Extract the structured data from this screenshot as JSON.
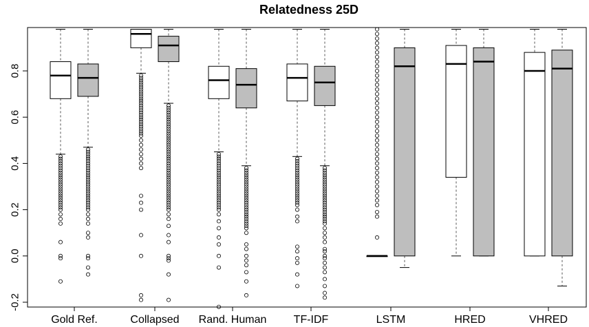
{
  "chart_data": {
    "type": "box",
    "title": "Relatedness 25D",
    "xlabel": "",
    "ylabel": "",
    "ylim": [
      -0.2,
      0.98
    ],
    "yticks": [
      -0.2,
      0.0,
      0.2,
      0.4,
      0.6,
      0.8
    ],
    "categories": [
      "Gold Ref.",
      "Collapsed",
      "Rand. Human",
      "TF-IDF",
      "LSTM",
      "HRED",
      "VHRED"
    ],
    "colors": {
      "first_box": "#ffffff",
      "second_box": "#bebebe",
      "axis": "#000000",
      "whisker": "#555555"
    },
    "series": [
      {
        "boxes": [
          {
            "min": 0.44,
            "q1": 0.68,
            "median": 0.78,
            "q3": 0.84,
            "max": 0.98,
            "outliers_low": [
              0.43,
              0.42,
              0.41,
              0.4,
              0.39,
              0.38,
              0.37,
              0.36,
              0.35,
              0.34,
              0.33,
              0.32,
              0.31,
              0.3,
              0.29,
              0.28,
              0.27,
              0.26,
              0.25,
              0.24,
              0.23,
              0.22,
              0.21,
              0.2,
              0.18,
              0.16,
              0.14,
              0.06,
              0.0,
              -0.01,
              -0.11
            ]
          },
          {
            "min": 0.79,
            "q1": 0.9,
            "median": 0.96,
            "q3": 0.98,
            "max": 0.98,
            "outliers_low": [
              0.78,
              0.77,
              0.76,
              0.75,
              0.74,
              0.73,
              0.72,
              0.71,
              0.7,
              0.69,
              0.68,
              0.67,
              0.66,
              0.65,
              0.64,
              0.63,
              0.62,
              0.61,
              0.6,
              0.59,
              0.58,
              0.57,
              0.56,
              0.55,
              0.54,
              0.53,
              0.52,
              0.5,
              0.48,
              0.46,
              0.44,
              0.42,
              0.4,
              0.38,
              0.26,
              0.23,
              0.2,
              0.09,
              0.0,
              -0.17,
              -0.19
            ]
          },
          {
            "min": 0.45,
            "q1": 0.68,
            "median": 0.76,
            "q3": 0.82,
            "max": 0.98,
            "outliers_low": [
              0.44,
              0.43,
              0.42,
              0.41,
              0.4,
              0.39,
              0.38,
              0.37,
              0.36,
              0.35,
              0.34,
              0.33,
              0.32,
              0.31,
              0.3,
              0.29,
              0.28,
              0.27,
              0.26,
              0.25,
              0.24,
              0.23,
              0.22,
              0.21,
              0.2,
              0.18,
              0.15,
              0.12,
              0.08,
              0.05,
              0.0,
              -0.05,
              -0.22
            ]
          },
          {
            "min": 0.43,
            "q1": 0.67,
            "median": 0.77,
            "q3": 0.83,
            "max": 0.98,
            "outliers_low": [
              0.42,
              0.41,
              0.4,
              0.39,
              0.38,
              0.37,
              0.36,
              0.35,
              0.34,
              0.33,
              0.32,
              0.31,
              0.3,
              0.29,
              0.28,
              0.27,
              0.26,
              0.25,
              0.24,
              0.23,
              0.22,
              0.2,
              0.17,
              0.15,
              0.04,
              0.02,
              -0.01,
              -0.03,
              -0.08,
              -0.13
            ]
          },
          {
            "min": 0.0,
            "q1": 0.0,
            "median": 0.0,
            "q3": 0.0,
            "max": 0.0,
            "outliers_high": [
              0.98,
              0.96,
              0.94,
              0.92,
              0.9,
              0.88,
              0.86,
              0.84,
              0.82,
              0.8,
              0.78,
              0.76,
              0.74,
              0.72,
              0.7,
              0.68,
              0.66,
              0.64,
              0.62,
              0.6,
              0.58,
              0.56,
              0.54,
              0.52,
              0.5,
              0.48,
              0.46,
              0.44,
              0.42,
              0.4,
              0.38,
              0.36,
              0.34,
              0.32,
              0.3,
              0.28,
              0.26,
              0.24,
              0.22,
              0.19,
              0.17,
              0.08
            ]
          },
          {
            "min": 0.0,
            "q1": 0.34,
            "median": 0.83,
            "q3": 0.91,
            "max": 0.98
          },
          {
            "min": 0.0,
            "q1": 0.0,
            "median": 0.8,
            "q3": 0.88,
            "max": 0.98
          }
        ]
      },
      {
        "boxes": [
          {
            "min": 0.47,
            "q1": 0.69,
            "median": 0.77,
            "q3": 0.83,
            "max": 0.98,
            "outliers_low": [
              0.46,
              0.45,
              0.44,
              0.43,
              0.42,
              0.41,
              0.4,
              0.39,
              0.38,
              0.37,
              0.36,
              0.35,
              0.34,
              0.33,
              0.32,
              0.31,
              0.3,
              0.29,
              0.28,
              0.27,
              0.26,
              0.25,
              0.24,
              0.23,
              0.22,
              0.21,
              0.2,
              0.18,
              0.16,
              0.14,
              0.1,
              0.08,
              0.0,
              -0.01,
              -0.05,
              -0.08
            ]
          },
          {
            "min": 0.66,
            "q1": 0.84,
            "median": 0.91,
            "q3": 0.95,
            "max": 0.98,
            "outliers_low": [
              0.65,
              0.64,
              0.63,
              0.62,
              0.61,
              0.6,
              0.59,
              0.58,
              0.57,
              0.56,
              0.55,
              0.54,
              0.53,
              0.52,
              0.51,
              0.5,
              0.49,
              0.48,
              0.47,
              0.46,
              0.45,
              0.44,
              0.43,
              0.42,
              0.41,
              0.4,
              0.39,
              0.38,
              0.37,
              0.36,
              0.35,
              0.34,
              0.33,
              0.32,
              0.31,
              0.3,
              0.29,
              0.28,
              0.27,
              0.26,
              0.25,
              0.24,
              0.23,
              0.22,
              0.21,
              0.2,
              0.18,
              0.16,
              0.13,
              0.09,
              0.06,
              0.0,
              -0.01,
              -0.02,
              -0.08,
              -0.19
            ]
          },
          {
            "min": 0.39,
            "q1": 0.64,
            "median": 0.74,
            "q3": 0.81,
            "max": 0.98,
            "outliers_low": [
              0.38,
              0.37,
              0.36,
              0.35,
              0.34,
              0.33,
              0.32,
              0.31,
              0.3,
              0.29,
              0.28,
              0.27,
              0.26,
              0.25,
              0.24,
              0.23,
              0.22,
              0.21,
              0.2,
              0.19,
              0.18,
              0.17,
              0.16,
              0.15,
              0.14,
              0.13,
              0.12,
              0.1,
              0.05,
              0.03,
              0.0,
              -0.02,
              -0.04,
              -0.07,
              -0.11,
              -0.17
            ]
          },
          {
            "min": 0.39,
            "q1": 0.65,
            "median": 0.75,
            "q3": 0.82,
            "max": 0.98,
            "outliers_low": [
              0.38,
              0.37,
              0.36,
              0.35,
              0.34,
              0.33,
              0.32,
              0.31,
              0.3,
              0.29,
              0.28,
              0.27,
              0.26,
              0.25,
              0.24,
              0.23,
              0.22,
              0.21,
              0.2,
              0.19,
              0.18,
              0.17,
              0.16,
              0.15,
              0.14,
              0.12,
              0.1,
              0.08,
              0.06,
              0.03,
              0.02,
              0.0,
              -0.01,
              -0.03,
              -0.05,
              -0.07,
              -0.1,
              -0.13,
              -0.16,
              -0.18
            ]
          },
          {
            "min": -0.05,
            "q1": 0.0,
            "median": 0.82,
            "q3": 0.9,
            "max": 0.98
          },
          {
            "min": 0.0,
            "q1": 0.0,
            "median": 0.84,
            "q3": 0.9,
            "max": 0.98
          },
          {
            "min": -0.13,
            "q1": 0.0,
            "median": 0.81,
            "q3": 0.89,
            "max": 0.98
          }
        ]
      }
    ]
  }
}
